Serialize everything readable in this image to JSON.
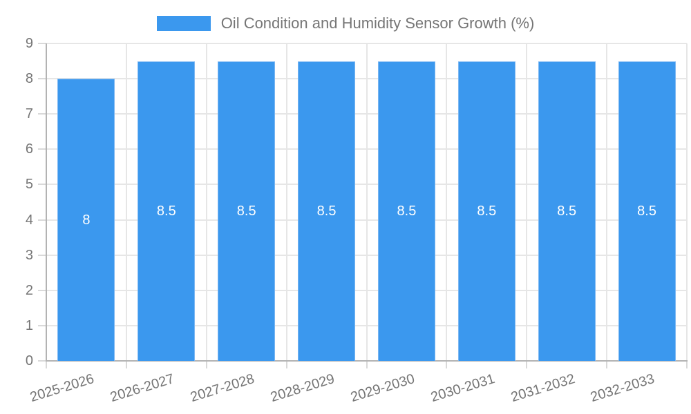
{
  "chart_data": {
    "type": "bar",
    "title": "Oil Condition and Humidity Sensor Growth (%)",
    "categories": [
      "2025-2026",
      "2026-2027",
      "2027-2028",
      "2028-2029",
      "2029-2030",
      "2030-2031",
      "2031-2032",
      "2032-2033"
    ],
    "values": [
      8,
      8.5,
      8.5,
      8.5,
      8.5,
      8.5,
      8.5,
      8.5
    ],
    "data_labels": [
      "8",
      "8.5",
      "8.5",
      "8.5",
      "8.5",
      "8.5",
      "8.5",
      "8.5"
    ],
    "xlabel": "",
    "ylabel": "",
    "ylim": [
      0,
      9
    ],
    "ytick_labels": [
      "0",
      "1",
      "2",
      "3",
      "4",
      "5",
      "6",
      "7",
      "8",
      "9"
    ],
    "grid": true,
    "legend_position": "top-center",
    "colors": {
      "bar_fill": "#3b98ee",
      "bar_edge": "#7eb8f2",
      "bar_label": "#ffffff",
      "axis_text": "#757575",
      "grid_line": "#e6e6e6",
      "tick_line": "#d9d9d9",
      "axis_line": "#b3b3b3",
      "background": "#ffffff"
    }
  }
}
